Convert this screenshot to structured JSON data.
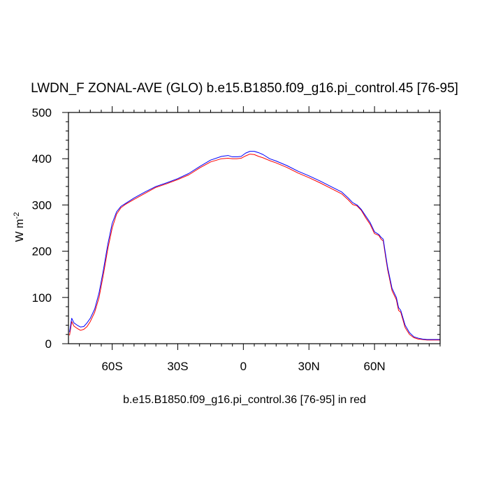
{
  "title": "LWDN_F ZONAL-AVE (GLO) b.e15.B1850.f09_g16.pi_control.45 [76-95]",
  "subtitle": "b.e15.B1850.f09_g16.pi_control.36 [76-95] in red",
  "chart_data": {
    "type": "line",
    "title": "LWDN_F ZONAL-AVE (GLO) b.e15.B1850.f09_g16.pi_control.45 [76-95]",
    "xlabel": "",
    "ylabel": "W m",
    "ylabel_superscript": "-2",
    "xlim": [
      -80,
      90
    ],
    "ylim": [
      0,
      500
    ],
    "x_ticks": [
      -60,
      -30,
      0,
      30,
      60
    ],
    "x_tick_labels": [
      "60S",
      "30S",
      "0",
      "30N",
      "60N"
    ],
    "y_ticks": [
      0,
      100,
      200,
      300,
      400,
      500
    ],
    "y_tick_labels": [
      "0",
      "100",
      "200",
      "300",
      "400",
      "500"
    ],
    "grid": false,
    "series": [
      {
        "color": "#0000ff",
        "x": [
          -79.5,
          -78.5,
          -77.5,
          -76,
          -74.5,
          -73,
          -71.5,
          -70,
          -68,
          -66,
          -64,
          -62,
          -60,
          -58,
          -56,
          -54,
          -50,
          -45,
          -40,
          -35,
          -30,
          -25,
          -20,
          -15,
          -10,
          -7,
          -5,
          -3,
          -1,
          1,
          3,
          5,
          7,
          9,
          12,
          15,
          20,
          25,
          30,
          35,
          40,
          45,
          48,
          50,
          52,
          54,
          56,
          58,
          60,
          62,
          63,
          64,
          65,
          66,
          68,
          70,
          71,
          72,
          74,
          76,
          78,
          80,
          82,
          84,
          86,
          88,
          90
        ],
        "y": [
          25,
          55,
          45,
          40,
          36,
          37,
          45,
          55,
          75,
          110,
          160,
          215,
          260,
          285,
          297,
          303,
          315,
          328,
          340,
          348,
          357,
          368,
          383,
          397,
          405,
          407,
          404,
          404,
          405,
          412,
          416,
          416,
          413,
          409,
          400,
          395,
          385,
          373,
          363,
          352,
          340,
          328,
          315,
          305,
          300,
          290,
          276,
          262,
          242,
          236,
          230,
          226,
          195,
          165,
          120,
          100,
          78,
          72,
          40,
          24,
          15,
          12,
          10,
          9,
          9,
          9,
          9
        ]
      },
      {
        "color": "#ff0000",
        "x": [
          -79.5,
          -78.5,
          -77.5,
          -76,
          -74.5,
          -73,
          -71.5,
          -70,
          -68,
          -66,
          -64,
          -62,
          -60,
          -58,
          -56,
          -54,
          -50,
          -45,
          -40,
          -35,
          -30,
          -25,
          -20,
          -15,
          -10,
          -7,
          -5,
          -3,
          -1,
          1,
          3,
          5,
          7,
          9,
          12,
          15,
          20,
          25,
          30,
          35,
          40,
          45,
          48,
          50,
          52,
          54,
          56,
          58,
          60,
          62,
          63,
          64,
          65,
          66,
          68,
          70,
          71,
          72,
          74,
          76,
          78,
          80,
          82,
          84,
          86,
          88,
          90
        ],
        "y": [
          18,
          48,
          38,
          33,
          29,
          31,
          37,
          48,
          68,
          100,
          150,
          205,
          250,
          280,
          294,
          301,
          312,
          325,
          338,
          346,
          355,
          365,
          380,
          393,
          400,
          401,
          400,
          400,
          401,
          406,
          410,
          409,
          405,
          402,
          396,
          391,
          381,
          369,
          359,
          348,
          336,
          324,
          311,
          301,
          298,
          288,
          272,
          258,
          238,
          234,
          226,
          222,
          190,
          160,
          115,
          95,
          72,
          68,
          35,
          20,
          13,
          10,
          9,
          8,
          8,
          8,
          8
        ]
      }
    ]
  }
}
